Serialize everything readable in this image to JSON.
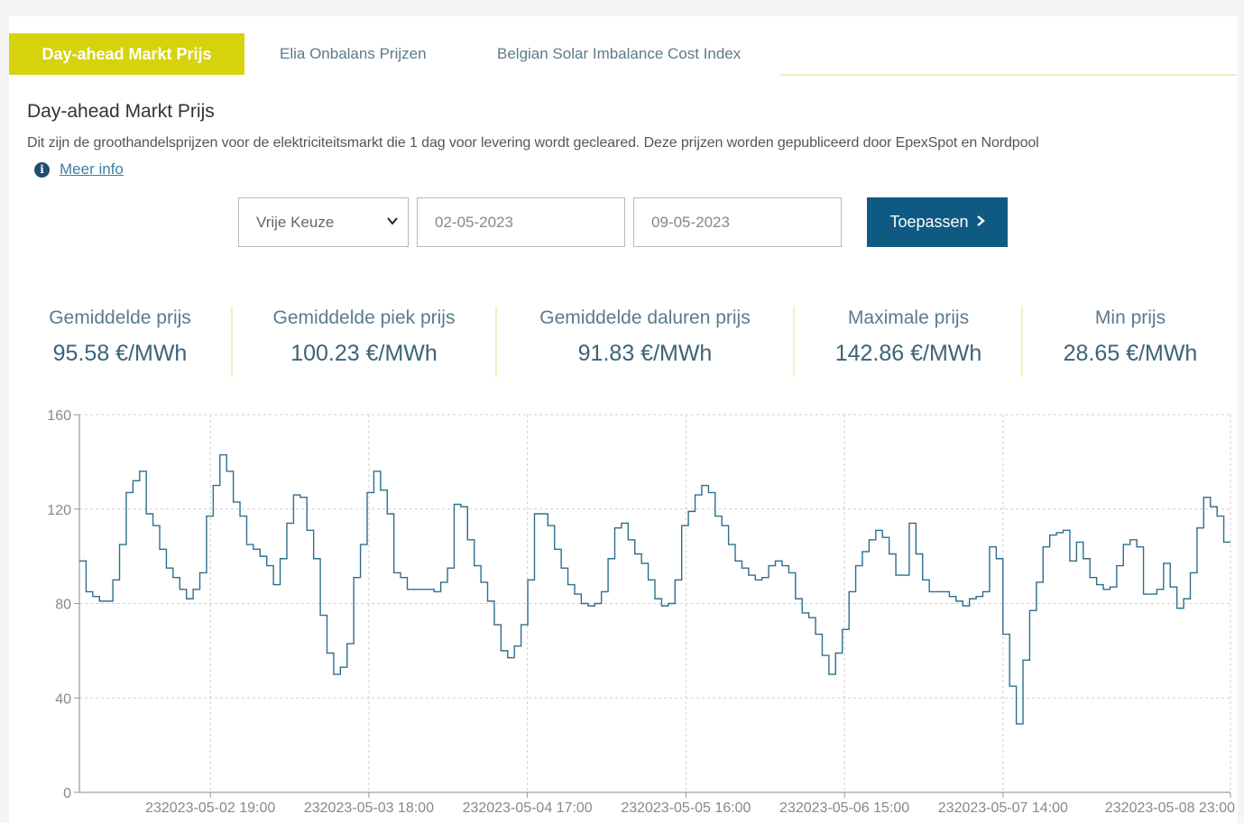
{
  "tabs": [
    {
      "label": "Day-ahead Markt Prijs",
      "active": true
    },
    {
      "label": "Elia Onbalans Prijzen",
      "active": false
    },
    {
      "label": "Belgian Solar Imbalance Cost Index",
      "active": false
    }
  ],
  "page": {
    "title": "Day-ahead Markt Prijs",
    "description": "Dit zijn de groothandelsprijzen voor de elektriciteitsmarkt die 1 dag voor levering wordt gecleared. Deze prijzen worden gepubliceerd door EpexSpot en Nordpool",
    "more_info": "Meer info"
  },
  "filters": {
    "period_select": "Vrije Keuze",
    "date_from": "02-05-2023",
    "date_to": "09-05-2023",
    "apply_label": "Toepassen"
  },
  "stats": [
    {
      "label": "Gemiddelde prijs",
      "value": "95.58 €/MWh"
    },
    {
      "label": "Gemiddelde piek prijs",
      "value": "100.23 €/MWh"
    },
    {
      "label": "Gemiddelde daluren prijs",
      "value": "91.83 €/MWh"
    },
    {
      "label": "Maximale prijs",
      "value": "142.86 €/MWh"
    },
    {
      "label": "Min prijs",
      "value": "28.65 €/MWh"
    }
  ],
  "colors": {
    "accent": "#d6d30d",
    "button": "#0e5a82",
    "line": "#2e6e8e"
  },
  "chart_data": {
    "type": "line",
    "step": true,
    "grid": true,
    "legend": "none",
    "ylim": [
      0,
      160
    ],
    "yticks": [
      0,
      40,
      80,
      120,
      160
    ],
    "xtick_labels": [
      "232023-05-02 19:00",
      "232023-05-03 18:00",
      "232023-05-04 17:00",
      "232023-05-05 16:00",
      "232023-05-06 15:00",
      "232023-05-07 14:00",
      "232023-05-08 23:00"
    ],
    "xtick_hours": [
      19,
      42,
      65,
      88,
      111,
      134,
      167
    ],
    "x_hours_start": 0,
    "x_hours_end": 167,
    "series": [
      {
        "values": [
          98,
          85,
          83,
          81,
          81,
          90,
          105,
          127,
          132,
          136,
          118,
          113,
          103,
          95,
          91,
          86,
          82,
          86,
          93,
          117,
          130,
          143,
          136,
          123,
          117,
          105,
          103,
          100,
          96,
          88,
          99,
          114,
          126,
          125,
          111,
          99,
          75,
          59,
          50,
          53,
          63,
          91,
          105,
          127,
          136,
          128,
          118,
          93,
          91,
          86,
          86,
          86,
          86,
          85,
          89,
          95,
          122,
          121,
          107,
          96,
          89,
          81,
          71,
          60,
          57,
          62,
          71,
          90,
          118,
          118,
          113,
          103,
          95,
          88,
          84,
          80,
          79,
          80,
          85,
          99,
          112,
          114,
          107,
          101,
          97,
          90,
          82,
          79,
          80,
          90,
          113,
          119,
          126,
          130,
          127,
          117,
          113,
          105,
          98,
          95,
          92,
          90,
          91,
          96,
          98,
          96,
          93,
          82,
          76,
          74,
          67,
          58,
          50,
          59,
          69,
          85,
          96,
          102,
          107,
          111,
          108,
          101,
          92,
          92,
          114,
          101,
          90,
          85,
          85,
          85,
          83,
          81,
          79,
          82,
          83,
          85,
          104,
          99,
          67,
          45,
          29,
          56,
          77,
          89,
          104,
          109,
          110,
          111,
          98,
          106,
          99,
          91,
          88,
          86,
          87,
          96,
          105,
          107,
          104,
          84,
          84,
          86,
          97,
          87,
          78,
          82,
          93,
          112,
          125,
          121,
          117,
          106
        ]
      }
    ]
  }
}
